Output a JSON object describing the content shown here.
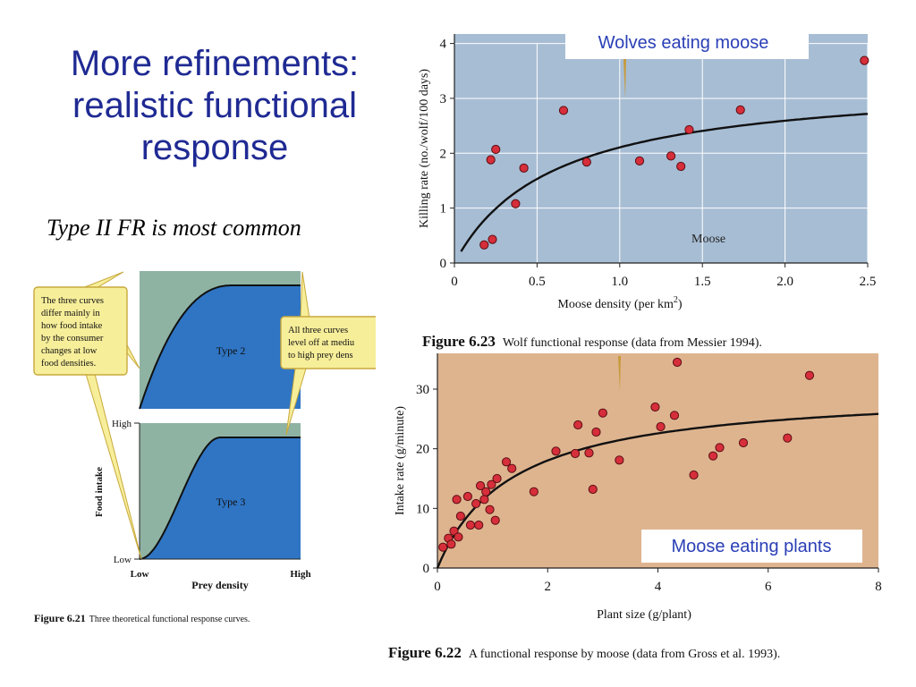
{
  "slide": {
    "title_lines": [
      "More refinements:",
      "realistic functional",
      "response"
    ],
    "subtitle": "Type II FR is most common"
  },
  "colors": {
    "title": "#1f2a93",
    "wolf_bg": "#a7bdd4",
    "moose_bg": "#deb48f",
    "fr_blue": "#2f75c4",
    "fr_green": "#8fb3a3",
    "point": "#d62e3a",
    "callout": "#f7ee9a"
  },
  "wolf_chart": {
    "label_box": "Wolves eating moose",
    "inner_label": "Moose",
    "xlabel": "Moose density (per km",
    "xlabel_sup": "2",
    "xlabel_tail": ")",
    "ylabel": "Killing rate (no./wolf/100 days)",
    "x_ticks": [
      "0",
      "0.5",
      "1.0",
      "1.5",
      "2.0",
      "2.5"
    ],
    "y_ticks": [
      "0",
      "1",
      "2",
      "3",
      "4"
    ],
    "caption_num": "Figure 6.23",
    "caption_text": "Wolf functional response (data from Messier 1994)."
  },
  "moose_chart": {
    "label_box": "Moose eating plants",
    "xlabel": "Plant size (g/plant)",
    "ylabel": "Intake rate (g/minute)",
    "x_ticks": [
      "0",
      "2",
      "4",
      "6",
      "8"
    ],
    "y_ticks": [
      "0",
      "10",
      "20",
      "30"
    ],
    "caption_num": "Figure 6.22",
    "caption_text": "A functional response by moose (data from Gross et al. 1993)."
  },
  "fr_chart": {
    "type2_label": "Type 2",
    "type3_label": "Type 3",
    "callout_left": [
      "The three curves",
      "differ mainly in",
      "how food intake",
      "by the consumer",
      "changes at low",
      "food densities."
    ],
    "callout_right": [
      "All three curves",
      "level off at mediu",
      "to high prey dens"
    ],
    "y_high": "High",
    "y_low": "Low",
    "ylabel": "Food intake",
    "x_low": "Low",
    "x_high": "High",
    "xlabel": "Prey density",
    "caption_num": "Figure 6.21",
    "caption_text": "Three theoretical functional response curves."
  },
  "chart_data": [
    {
      "type": "scatter",
      "title": "Wolves eating moose",
      "xlabel": "Moose density (per km2)",
      "ylabel": "Killing rate (no./wolf/100 days)",
      "xlim": [
        0,
        2.5
      ],
      "ylim": [
        0,
        4
      ],
      "grid": true,
      "points": [
        {
          "x": 0.18,
          "y": 0.33
        },
        {
          "x": 0.23,
          "y": 0.43
        },
        {
          "x": 0.22,
          "y": 1.88
        },
        {
          "x": 0.25,
          "y": 2.07
        },
        {
          "x": 0.37,
          "y": 1.08
        },
        {
          "x": 0.42,
          "y": 1.73
        },
        {
          "x": 0.66,
          "y": 2.78
        },
        {
          "x": 0.8,
          "y": 1.84
        },
        {
          "x": 1.12,
          "y": 1.86
        },
        {
          "x": 1.31,
          "y": 1.95
        },
        {
          "x": 1.37,
          "y": 1.76
        },
        {
          "x": 1.42,
          "y": 2.43
        },
        {
          "x": 1.73,
          "y": 2.79
        },
        {
          "x": 2.48,
          "y": 3.69
        }
      ],
      "curve": {
        "x_start": 0.04,
        "x_end": 2.5,
        "a": 3.37,
        "h": 0.6
      }
    },
    {
      "type": "scatter",
      "title": "Moose eating plants",
      "xlabel": "Plant size (g/plant)",
      "ylabel": "Intake rate (g/minute)",
      "xlim": [
        0,
        8
      ],
      "ylim": [
        0,
        36
      ],
      "grid": false,
      "points": [
        {
          "x": 0.1,
          "y": 3.5
        },
        {
          "x": 0.2,
          "y": 5.0
        },
        {
          "x": 0.25,
          "y": 4.0
        },
        {
          "x": 0.3,
          "y": 6.2
        },
        {
          "x": 0.35,
          "y": 11.5
        },
        {
          "x": 0.38,
          "y": 5.2
        },
        {
          "x": 0.42,
          "y": 8.7
        },
        {
          "x": 0.55,
          "y": 12.0
        },
        {
          "x": 0.6,
          "y": 7.2
        },
        {
          "x": 0.7,
          "y": 10.8
        },
        {
          "x": 0.75,
          "y": 7.2
        },
        {
          "x": 0.78,
          "y": 13.8
        },
        {
          "x": 0.85,
          "y": 11.5
        },
        {
          "x": 0.88,
          "y": 12.8
        },
        {
          "x": 0.95,
          "y": 9.8
        },
        {
          "x": 0.98,
          "y": 14.0
        },
        {
          "x": 1.05,
          "y": 8.0
        },
        {
          "x": 1.08,
          "y": 15.0
        },
        {
          "x": 1.25,
          "y": 17.8
        },
        {
          "x": 1.35,
          "y": 16.7
        },
        {
          "x": 1.75,
          "y": 12.8
        },
        {
          "x": 2.15,
          "y": 19.6
        },
        {
          "x": 2.5,
          "y": 19.2
        },
        {
          "x": 2.55,
          "y": 24.0
        },
        {
          "x": 2.75,
          "y": 19.3
        },
        {
          "x": 2.82,
          "y": 13.2
        },
        {
          "x": 2.88,
          "y": 22.8
        },
        {
          "x": 3.0,
          "y": 26.0
        },
        {
          "x": 3.3,
          "y": 18.1
        },
        {
          "x": 3.95,
          "y": 27.0
        },
        {
          "x": 4.05,
          "y": 23.7
        },
        {
          "x": 4.3,
          "y": 25.6
        },
        {
          "x": 4.35,
          "y": 34.5
        },
        {
          "x": 4.65,
          "y": 15.6
        },
        {
          "x": 5.0,
          "y": 18.8
        },
        {
          "x": 5.12,
          "y": 20.2
        },
        {
          "x": 5.55,
          "y": 21.0
        },
        {
          "x": 6.35,
          "y": 21.8
        },
        {
          "x": 6.75,
          "y": 32.3
        }
      ],
      "curve": {
        "x_start": 0.0,
        "x_end": 8.0,
        "a": 30.2,
        "h": 1.35
      }
    },
    {
      "type": "area",
      "title": "",
      "xlabel": "Prey density",
      "ylabel": "Food intake",
      "panels": [
        {
          "name": "Type 2",
          "kind": "type2"
        },
        {
          "name": "Type 3",
          "kind": "type3"
        }
      ]
    }
  ]
}
